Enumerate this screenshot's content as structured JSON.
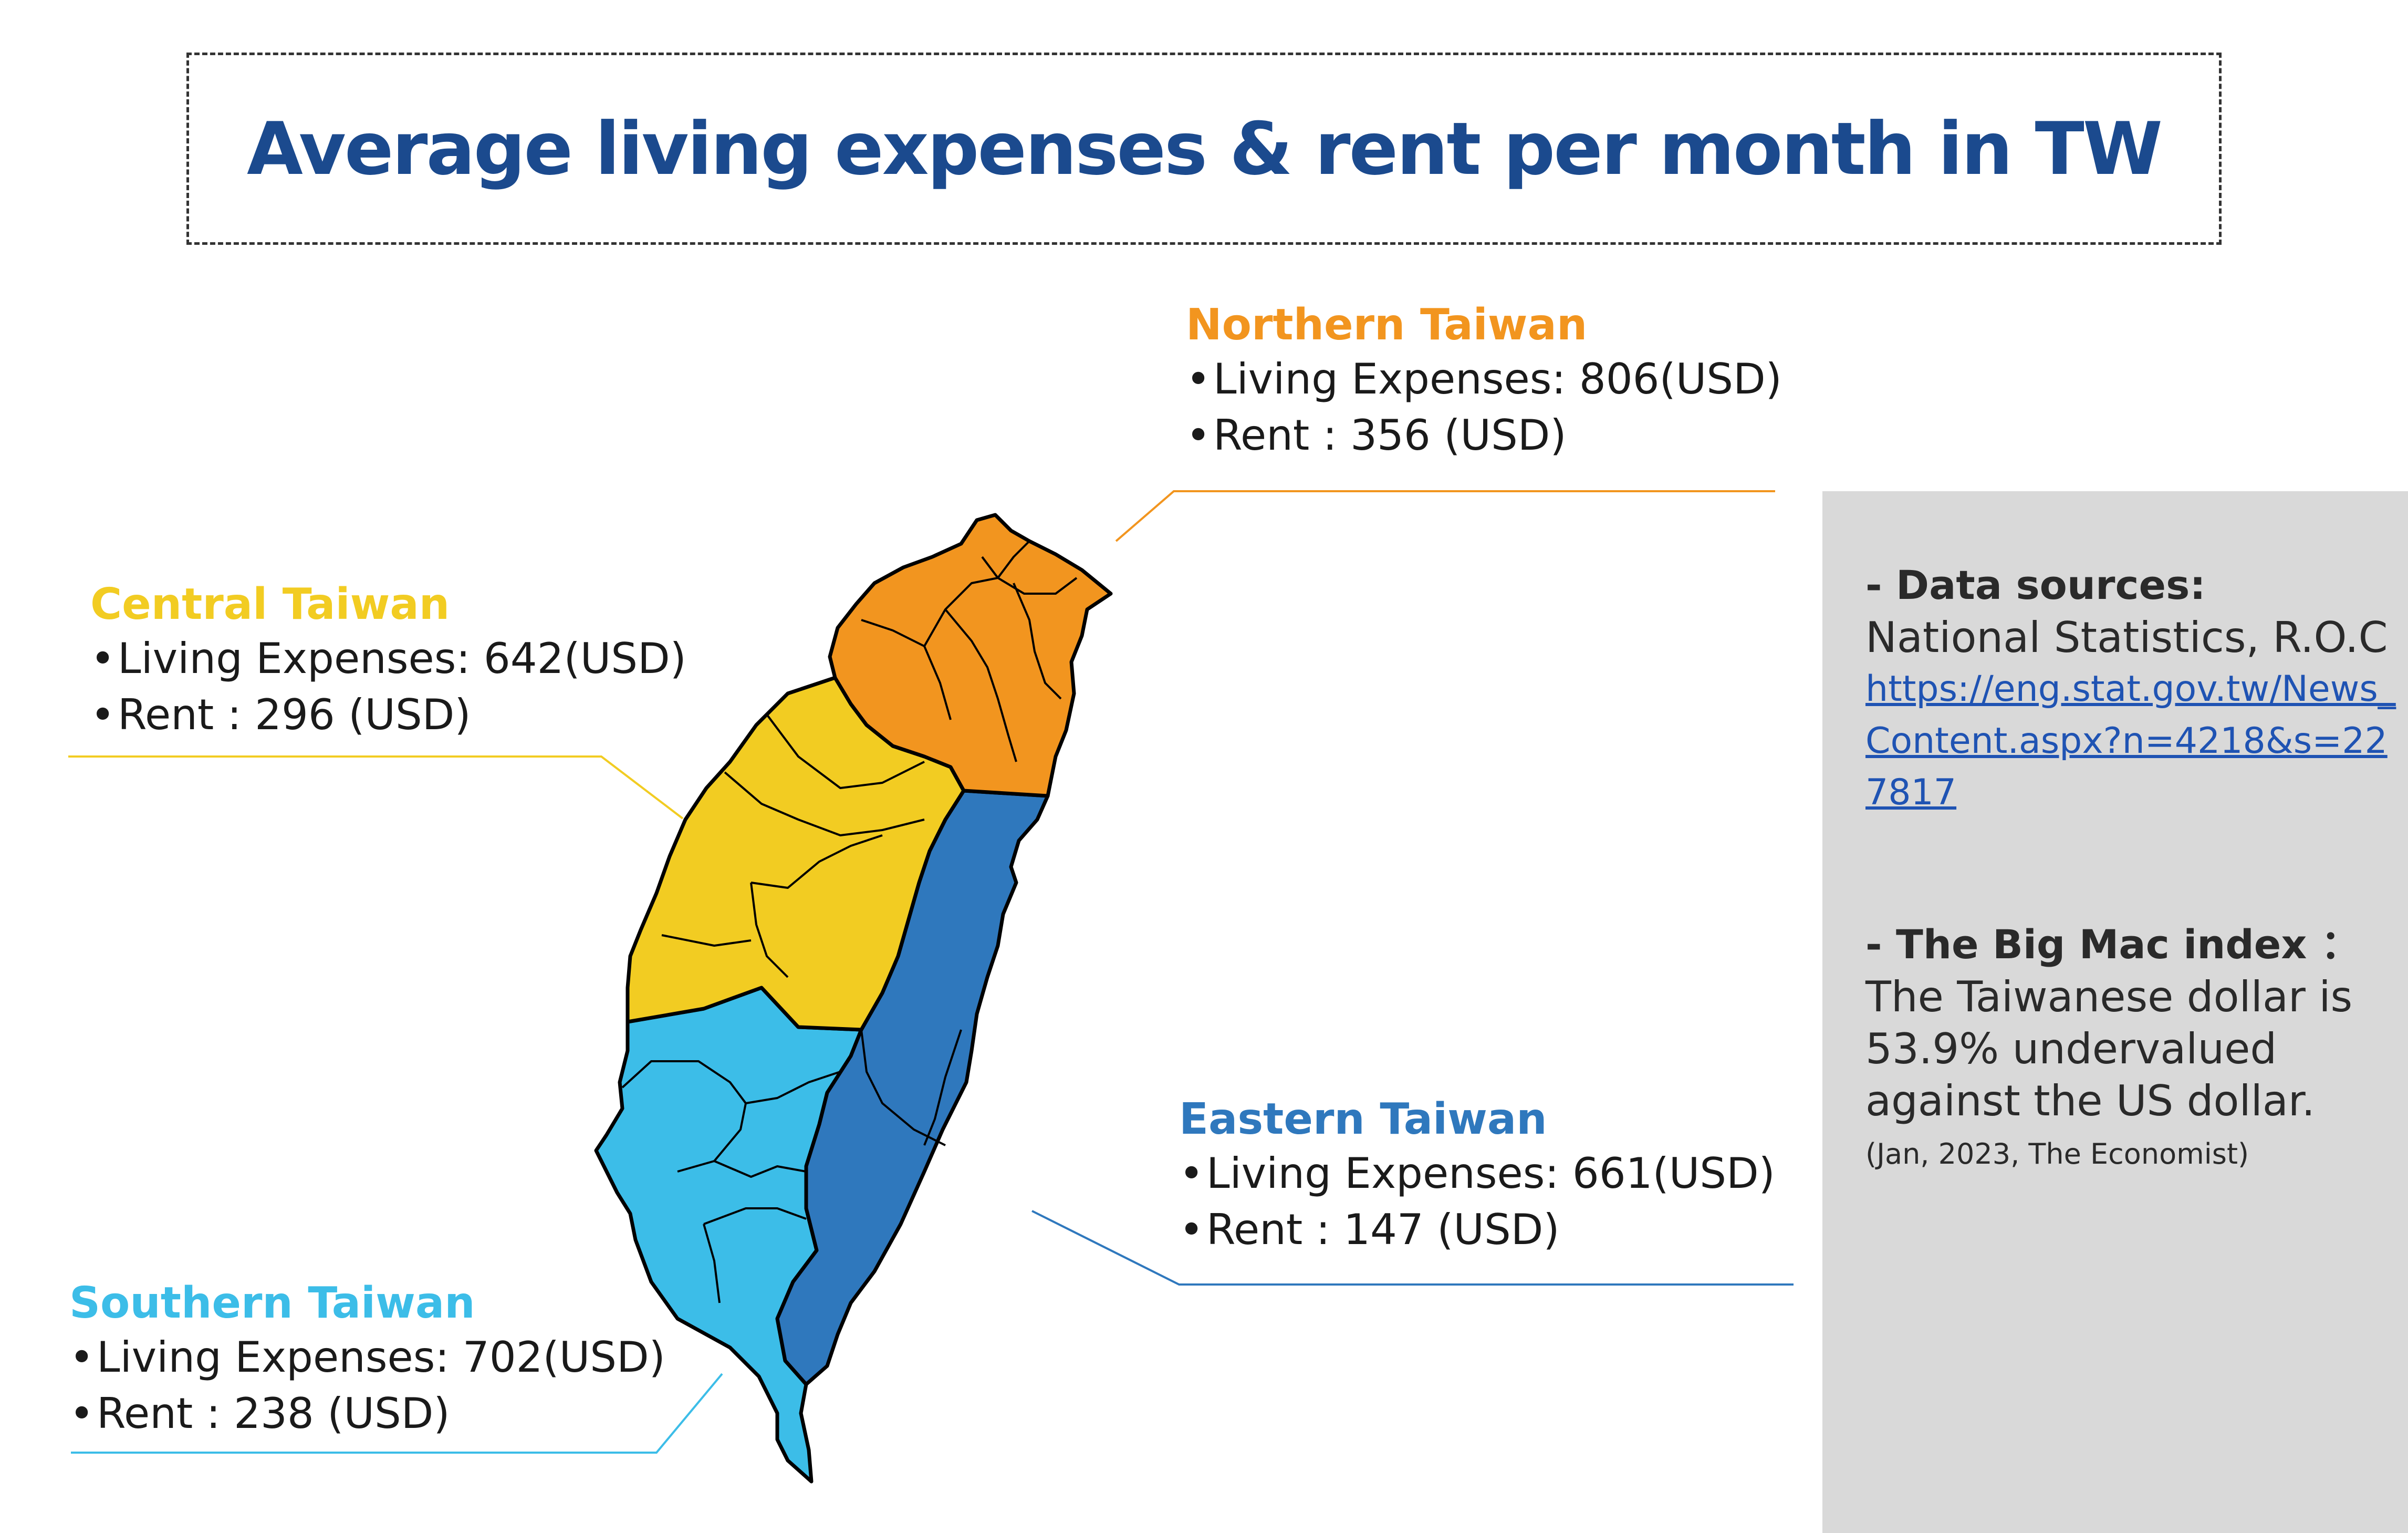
{
  "title": "Average living expenses & rent per month in TW",
  "colors": {
    "title": "#1b4a8e",
    "northern": "#f2951f",
    "central": "#f2cc22",
    "southern": "#3cbde8",
    "eastern": "#2f78bd",
    "panel_bg": "#d9d9d9",
    "link": "#1f53b3"
  },
  "regions": {
    "northern": {
      "name": "Northern Taiwan",
      "living": "Living Expenses: 806(USD)",
      "rent": "Rent : 356 (USD)",
      "living_usd": 806,
      "rent_usd": 356
    },
    "central": {
      "name": "Central Taiwan",
      "living": "Living Expenses: 642(USD)",
      "rent": "Rent : 296 (USD)",
      "living_usd": 642,
      "rent_usd": 296
    },
    "eastern": {
      "name": "Eastern Taiwan",
      "living": "Living Expenses: 661(USD)",
      "rent": "Rent : 147 (USD)",
      "living_usd": 661,
      "rent_usd": 147
    },
    "southern": {
      "name": "Southern Taiwan",
      "living": "Living Expenses: 702(USD)",
      "rent": "Rent : 238 (USD)",
      "living_usd": 702,
      "rent_usd": 238
    }
  },
  "bullet": "•",
  "sources": {
    "heading": "- Data sources:",
    "org": "National Statistics, R.O.C",
    "link": "https://eng.stat.gov.tw/News_Content.aspx?n=4218&s=227817"
  },
  "bigmac": {
    "heading": "- The Big Mac index ：",
    "text": "The Taiwanese dollar is 53.9% undervalued against the US dollar.",
    "note": "(Jan, 2023, The Economist)"
  }
}
